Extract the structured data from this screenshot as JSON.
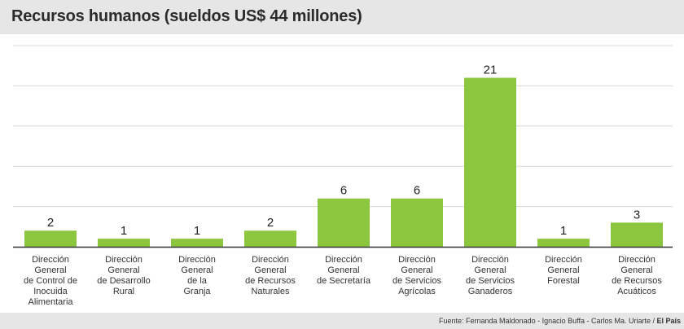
{
  "chart_data": {
    "type": "bar",
    "title": "Recursos humanos (sueldos US$ 44 millones)",
    "categories": [
      [
        "Dirección",
        "General",
        "de Control de",
        "Inocuida Alimentaria"
      ],
      [
        "Dirección",
        "General",
        "de Desarrollo",
        "Rural"
      ],
      [
        "Dirección",
        "General",
        "de la",
        "Granja"
      ],
      [
        "Dirección",
        "General",
        "de Recursos",
        "Naturales"
      ],
      [
        "Dirección",
        "General",
        "de Secretaría"
      ],
      [
        "Dirección",
        "General",
        "de Servicios",
        "Agrícolas"
      ],
      [
        "Dirección",
        "General",
        "de Servicios",
        "Ganaderos"
      ],
      [
        "Dirección",
        "General",
        "Forestal"
      ],
      [
        "Dirección",
        "General",
        "de Recursos",
        "Acuáticos"
      ]
    ],
    "values": [
      2,
      1,
      1,
      2,
      6,
      6,
      21,
      1,
      3
    ],
    "data_labels": [
      "2",
      "1",
      "1",
      "2",
      "6",
      "6",
      "21",
      "1",
      "3"
    ],
    "ylim": [
      0,
      25
    ],
    "grid": true,
    "bar_color": "#8cc63f",
    "grid_color": "#d9d9d9"
  },
  "source": {
    "text": "Fuente: Fernanda Maldonado - Ignacio Buffa - Carlos Ma. Uriarte / ",
    "brand": "El País"
  }
}
